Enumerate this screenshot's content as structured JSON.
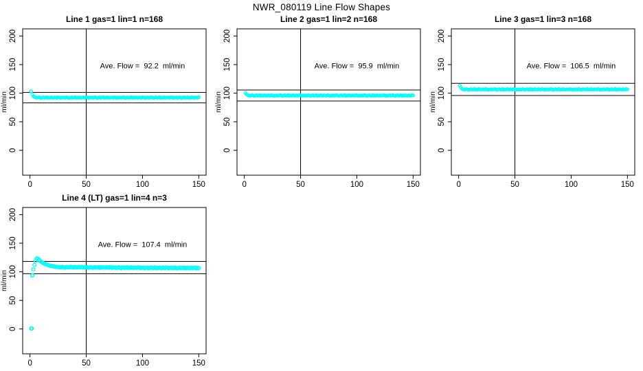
{
  "page_title": "NWR_080119  Line Flow Shapes",
  "colors": {
    "marker": "#00FFFF",
    "axis": "#000000",
    "text": "#000000",
    "background": "#FFFFFF"
  },
  "chart_data": [
    {
      "type": "scatter",
      "title": "Line 1 gas=1 lin=1 n=168",
      "annotation": "Ave. Flow =  92.2  ml/min",
      "ave_flow_ml_min": 92.2,
      "ylabel": "ml/min",
      "x_ticks": [
        0,
        50,
        100,
        150
      ],
      "y_ticks": [
        0,
        50,
        100,
        150,
        200
      ],
      "xlim": [
        -6.5,
        156.5
      ],
      "ylim": [
        -43.5,
        212.5
      ],
      "vline_x": 50,
      "hlines": [
        101.4,
        83.0
      ],
      "annotation_xy": [
        100,
        148
      ],
      "marker_r": 2,
      "x_start": 1,
      "x_step": 1,
      "y": [
        103.5,
        98.2,
        94.6,
        93.4,
        92.5,
        91.9,
        92.4,
        92.9,
        92.1,
        91.7,
        92.3,
        92.7,
        92.0,
        92.3,
        93.0,
        91.8,
        92.4,
        92.1,
        92.8,
        92.2,
        91.9,
        92.6,
        92.3,
        92.0,
        92.9,
        92.5,
        91.7,
        92.4,
        92.2,
        92.5,
        91.9,
        92.4,
        92.9,
        92.1,
        91.7,
        92.3,
        92.7,
        92.0,
        92.3,
        93.0,
        91.8,
        92.4,
        92.1,
        92.8,
        92.2,
        91.9,
        92.6,
        92.3,
        92.0,
        92.9,
        92.5,
        91.7,
        92.4,
        92.2,
        92.5,
        91.9,
        92.4,
        92.9,
        92.1,
        91.7,
        92.3,
        92.7,
        92.0,
        92.3,
        93.0,
        91.8,
        92.4,
        92.1,
        92.8,
        92.2,
        91.9,
        92.6,
        92.3,
        92.0,
        92.9,
        92.5,
        91.7,
        92.4,
        92.2,
        92.5,
        91.9,
        92.4,
        92.9,
        92.1,
        91.7,
        92.3,
        92.7,
        92.0,
        92.3,
        93.0,
        91.8,
        92.4,
        92.1,
        92.8,
        92.2,
        91.9,
        92.6,
        92.3,
        92.0,
        92.9,
        92.5,
        91.7,
        92.4,
        92.2,
        92.5,
        91.9,
        92.4,
        92.9,
        92.1,
        91.7,
        92.3,
        92.7,
        92.0,
        92.3,
        93.0,
        91.8,
        92.4,
        92.1,
        92.8,
        92.2,
        91.9,
        92.6,
        92.3,
        92.0,
        92.9,
        92.5,
        91.7,
        92.4,
        92.2,
        92.5,
        91.9,
        92.4,
        92.9,
        92.1,
        91.7,
        92.3,
        92.7,
        92.0,
        92.3,
        93.0,
        91.8,
        92.4,
        92.1,
        92.8,
        92.2,
        91.9,
        92.6,
        92.3,
        92.0,
        92.9
      ],
      "extra_points": []
    },
    {
      "type": "scatter",
      "title": "Line 2 gas=1 lin=2 n=168",
      "annotation": "Ave. Flow =  95.9  ml/min",
      "ave_flow_ml_min": 95.9,
      "ylabel": "ml/min",
      "x_ticks": [
        0,
        50,
        100,
        150
      ],
      "y_ticks": [
        0,
        50,
        100,
        150,
        200
      ],
      "xlim": [
        -6.5,
        156.5
      ],
      "ylim": [
        -43.5,
        212.5
      ],
      "vline_x": 50,
      "hlines": [
        105.5,
        86.3
      ],
      "annotation_xy": [
        100,
        148
      ],
      "marker_r": 2,
      "x_start": 1,
      "x_step": 1,
      "y": [
        100.3,
        98.0,
        96.6,
        96.1,
        95.4,
        96.0,
        96.5,
        95.7,
        95.2,
        95.9,
        96.3,
        95.5,
        95.8,
        96.6,
        95.3,
        96.0,
        95.6,
        96.4,
        95.8,
        95.4,
        96.2,
        95.9,
        95.5,
        96.5,
        96.0,
        95.2,
        95.9,
        95.7,
        96.1,
        95.4,
        96.0,
        96.5,
        95.7,
        95.2,
        95.9,
        96.3,
        95.5,
        95.8,
        96.6,
        95.3,
        96.0,
        95.6,
        96.4,
        95.8,
        95.4,
        96.2,
        95.9,
        95.5,
        96.5,
        96.0,
        95.2,
        95.9,
        95.7,
        96.1,
        95.4,
        96.0,
        96.5,
        95.7,
        95.2,
        95.9,
        96.3,
        95.5,
        95.8,
        96.6,
        95.3,
        96.0,
        95.6,
        96.4,
        95.8,
        95.4,
        96.2,
        95.9,
        95.5,
        96.5,
        96.0,
        95.2,
        95.9,
        95.7,
        96.1,
        95.4,
        96.0,
        96.5,
        95.7,
        95.2,
        95.9,
        96.3,
        95.5,
        95.8,
        96.6,
        95.3,
        96.0,
        95.6,
        96.4,
        95.8,
        95.4,
        96.2,
        95.9,
        95.5,
        96.5,
        96.0,
        95.2,
        95.9,
        95.7,
        96.1,
        95.4,
        96.0,
        96.5,
        95.7,
        95.2,
        95.9,
        96.3,
        95.5,
        95.8,
        96.6,
        95.3,
        96.0,
        95.6,
        96.4,
        95.8,
        95.4,
        96.2,
        95.9,
        95.5,
        96.5,
        96.0,
        95.2,
        95.9,
        95.7,
        96.1,
        95.4,
        96.0,
        96.5,
        95.7,
        95.2,
        95.9,
        96.3,
        95.5,
        95.8,
        96.6,
        95.3,
        96.0,
        95.6,
        96.4,
        95.8,
        95.4,
        96.2,
        95.9,
        95.5,
        96.5,
        96.0
      ],
      "extra_points": []
    },
    {
      "type": "scatter",
      "title": "Line 3 gas=1 lin=3 n=168",
      "annotation": "Ave. Flow =  106.5  ml/min",
      "ave_flow_ml_min": 106.5,
      "ylabel": "ml/min",
      "x_ticks": [
        0,
        50,
        100,
        150
      ],
      "y_ticks": [
        0,
        50,
        100,
        150,
        200
      ],
      "xlim": [
        -6.5,
        156.5
      ],
      "ylim": [
        -43.5,
        212.5
      ],
      "vline_x": 50,
      "hlines": [
        117.2,
        95.9
      ],
      "annotation_xy": [
        100,
        148
      ],
      "marker_r": 2,
      "x_start": 1,
      "x_step": 1,
      "y": [
        113.2,
        109.8,
        107.6,
        106.8,
        106.1,
        106.7,
        107.2,
        106.4,
        105.9,
        106.6,
        107.0,
        106.2,
        106.5,
        107.3,
        106.0,
        106.7,
        106.3,
        107.1,
        106.5,
        106.1,
        106.9,
        106.6,
        106.2,
        107.2,
        106.7,
        105.9,
        106.6,
        106.4,
        106.8,
        106.1,
        106.7,
        107.2,
        106.4,
        105.9,
        106.6,
        107.0,
        106.2,
        106.5,
        107.3,
        106.0,
        106.7,
        106.3,
        107.1,
        106.5,
        106.1,
        106.9,
        106.6,
        106.2,
        107.2,
        106.7,
        105.9,
        106.6,
        106.4,
        106.8,
        106.1,
        106.7,
        107.2,
        106.4,
        105.9,
        106.6,
        107.0,
        106.2,
        106.5,
        107.3,
        106.0,
        106.7,
        106.3,
        107.1,
        106.5,
        106.1,
        106.9,
        106.6,
        106.2,
        107.2,
        106.7,
        105.9,
        106.6,
        106.4,
        106.8,
        106.1,
        106.7,
        107.2,
        106.4,
        105.9,
        106.6,
        107.0,
        106.2,
        106.5,
        107.3,
        106.0,
        106.7,
        106.3,
        107.1,
        106.5,
        106.1,
        106.9,
        106.6,
        106.2,
        107.2,
        106.7,
        105.9,
        106.6,
        106.4,
        106.8,
        106.1,
        106.7,
        107.2,
        106.4,
        105.9,
        106.6,
        107.0,
        106.2,
        106.5,
        107.3,
        106.0,
        106.7,
        106.3,
        107.1,
        106.5,
        106.1,
        106.9,
        106.6,
        106.2,
        107.2,
        106.7,
        105.9,
        106.6,
        106.4,
        106.8,
        106.1,
        106.7,
        107.2,
        106.4,
        105.9,
        106.6,
        107.0,
        106.2,
        106.5,
        107.3,
        106.0,
        106.7,
        106.3,
        107.1,
        106.5,
        106.1,
        106.9,
        106.6,
        106.2,
        107.2,
        106.7
      ],
      "extra_points": []
    },
    {
      "type": "scatter",
      "title": "Line 4 (LT) gas=1 lin=4 n=3",
      "annotation": "Ave. Flow =  107.4  ml/min",
      "ave_flow_ml_min": 107.4,
      "ylabel": "ml/min",
      "x_ticks": [
        0,
        50,
        100,
        150
      ],
      "y_ticks": [
        0,
        50,
        100,
        150,
        200
      ],
      "xlim": [
        -6.5,
        156.5
      ],
      "ylim": [
        -43.5,
        212.5
      ],
      "vline_x": 50,
      "hlines": [
        118.1,
        96.7
      ],
      "annotation_xy": [
        100,
        148
      ],
      "marker_r": 2.4,
      "x_start": 1,
      "x_step": 1,
      "y": [
        0.8,
        93.5,
        104.5,
        112.0,
        119.5,
        123.5,
        123.0,
        121.0,
        119.0,
        117.5,
        116.0,
        115.0,
        114.0,
        113.2,
        112.5,
        111.8,
        111.2,
        110.7,
        110.2,
        109.8,
        109.4,
        109.0,
        108.7,
        108.5,
        108.3,
        108.4,
        107.5,
        108.1,
        108.7,
        107.7,
        107.2,
        108.3,
        108.5,
        107.6,
        108.0,
        108.8,
        107.4,
        108.2,
        107.7,
        108.5,
        107.9,
        107.5,
        108.4,
        108.0,
        107.6,
        108.7,
        108.3,
        107.2,
        108.1,
        107.8,
        108.0,
        107.1,
        107.7,
        108.3,
        107.3,
        106.8,
        107.9,
        108.1,
        107.2,
        107.6,
        108.4,
        107.0,
        107.8,
        107.3,
        108.1,
        107.5,
        107.1,
        108.0,
        107.6,
        107.2,
        108.3,
        107.9,
        106.8,
        107.7,
        107.4,
        107.6,
        106.7,
        107.3,
        107.9,
        106.9,
        106.4,
        107.5,
        107.7,
        106.8,
        107.2,
        108.0,
        106.6,
        107.4,
        106.9,
        107.7,
        107.1,
        106.7,
        107.6,
        107.2,
        106.8,
        107.9,
        107.5,
        106.4,
        107.3,
        107.0,
        107.3,
        106.4,
        107.0,
        107.6,
        106.6,
        106.1,
        107.2,
        107.4,
        106.5,
        106.9,
        107.7,
        106.3,
        107.1,
        106.6,
        107.4,
        106.8,
        106.4,
        107.3,
        106.9,
        106.5,
        107.6,
        107.2,
        106.1,
        107.0,
        106.7,
        107.1,
        106.2,
        106.8,
        107.4,
        106.4,
        105.9,
        107.0,
        107.2,
        106.3,
        106.7,
        107.5,
        106.1,
        106.9,
        106.4,
        107.2,
        106.6,
        106.2,
        107.1,
        106.7,
        106.3,
        107.4,
        107.0,
        105.9,
        106.8,
        106.5
      ],
      "extra_points": [
        [
          1.7,
          0.8
        ],
        [
          2.3,
          94.0
        ]
      ]
    }
  ]
}
